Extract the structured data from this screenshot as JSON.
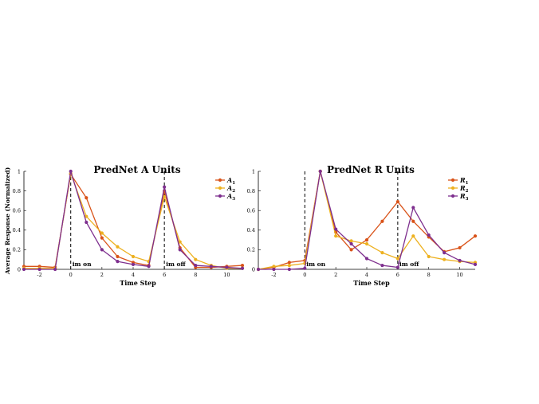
{
  "figure": {
    "ylabel": "Average Response (Normalized)"
  },
  "chart_data": [
    {
      "type": "line",
      "title": "PredNet A Units",
      "xlabel": "Time Step",
      "ylabel": "Average Response (Normalized)",
      "xlim": [
        -3,
        11
      ],
      "ylim": [
        0,
        1
      ],
      "xticks": [
        -2,
        0,
        2,
        4,
        6,
        8,
        10
      ],
      "yticks": [
        0,
        0.2,
        0.4,
        0.6,
        0.8,
        1
      ],
      "x": [
        -3,
        -2,
        -1,
        0,
        1,
        2,
        3,
        4,
        5,
        6,
        7,
        8,
        9,
        10,
        11
      ],
      "vlines": [
        0,
        6
      ],
      "annotations": [
        {
          "x": 0,
          "text": "im on"
        },
        {
          "x": 6,
          "text": "im off"
        }
      ],
      "legend_position": "top-right",
      "series": [
        {
          "name": "A",
          "sub": "1",
          "color": "#D95319",
          "values": [
            0.03,
            0.03,
            0.02,
            0.97,
            0.73,
            0.32,
            0.13,
            0.07,
            0.04,
            0.8,
            0.22,
            0.02,
            0.02,
            0.03,
            0.04
          ]
        },
        {
          "name": "A",
          "sub": "2",
          "color": "#EDB120",
          "values": [
            0.01,
            0.01,
            0.01,
            0.98,
            0.54,
            0.37,
            0.23,
            0.13,
            0.08,
            0.74,
            0.28,
            0.1,
            0.04,
            0.01,
            0.01
          ]
        },
        {
          "name": "A",
          "sub": "3",
          "color": "#7E2F8E",
          "values": [
            0.0,
            0.0,
            0.0,
            1.0,
            0.48,
            0.2,
            0.08,
            0.05,
            0.03,
            0.84,
            0.2,
            0.04,
            0.03,
            0.02,
            0.01
          ]
        }
      ]
    },
    {
      "type": "line",
      "title": "PredNet R Units",
      "xlabel": "Time Step",
      "ylabel": "",
      "xlim": [
        -3,
        11
      ],
      "ylim": [
        0,
        1
      ],
      "xticks": [
        -2,
        0,
        2,
        4,
        6,
        8,
        10
      ],
      "yticks": [
        0,
        0.2,
        0.4,
        0.6,
        0.8,
        1
      ],
      "x": [
        -3,
        -2,
        -1,
        0,
        1,
        2,
        3,
        4,
        5,
        6,
        7,
        8,
        9,
        10,
        11
      ],
      "vlines": [
        0,
        6
      ],
      "annotations": [
        {
          "x": 0,
          "text": "im on"
        },
        {
          "x": 6,
          "text": "im off"
        }
      ],
      "legend_position": "top-right",
      "series": [
        {
          "name": "R",
          "sub": "1",
          "color": "#D95319",
          "values": [
            0.0,
            0.02,
            0.07,
            0.09,
            1.0,
            0.38,
            0.2,
            0.3,
            0.49,
            0.69,
            0.49,
            0.33,
            0.18,
            0.22,
            0.34
          ]
        },
        {
          "name": "R",
          "sub": "2",
          "color": "#EDB120",
          "values": [
            0.0,
            0.03,
            0.04,
            0.06,
            1.0,
            0.34,
            0.29,
            0.26,
            0.17,
            0.11,
            0.34,
            0.13,
            0.1,
            0.08,
            0.07
          ]
        },
        {
          "name": "R",
          "sub": "3",
          "color": "#7E2F8E",
          "values": [
            0.0,
            0.0,
            0.0,
            0.01,
            1.0,
            0.41,
            0.26,
            0.11,
            0.04,
            0.02,
            0.63,
            0.35,
            0.17,
            0.09,
            0.05
          ]
        }
      ]
    }
  ]
}
